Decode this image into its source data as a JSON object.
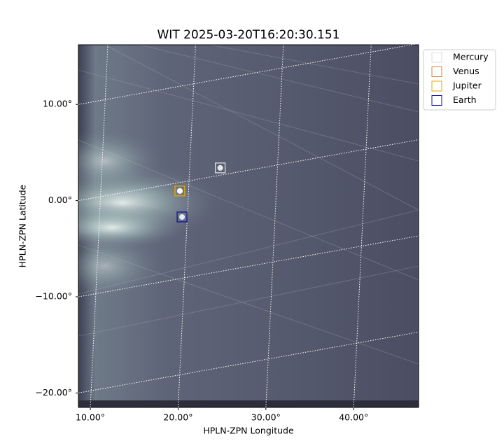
{
  "chart_data": {
    "type": "scatter",
    "title": "WIT 2025-03-20T16:20:30.151",
    "xlabel": "HPLN-ZPN Longitude",
    "ylabel": "HPLN-ZPN Latitude",
    "xlim": [
      8.64,
      47.4
    ],
    "ylim": [
      -21.5,
      16.2
    ],
    "xticks": [
      {
        "value": 10,
        "label": "10.00°"
      },
      {
        "value": 20,
        "label": "20.00°"
      },
      {
        "value": 30,
        "label": "30.00°"
      },
      {
        "value": 40,
        "label": "40.00°"
      }
    ],
    "yticks": [
      {
        "value": -20,
        "label": "−20.00°"
      },
      {
        "value": -10,
        "label": "−10.00°"
      },
      {
        "value": 0,
        "label": "0.00°"
      },
      {
        "value": 10,
        "label": "10.00°"
      }
    ],
    "grid": true,
    "series": [
      {
        "name": "Mercury",
        "color": "#dddddd",
        "x": [
          24.8
        ],
        "values": [
          3.4
        ]
      },
      {
        "name": "Venus",
        "color": "#e07b39",
        "x": [
          20.2
        ],
        "values": [
          1.0
        ]
      },
      {
        "name": "Jupiter",
        "color": "#e0a800",
        "x": [
          20.2
        ],
        "values": [
          1.0
        ]
      },
      {
        "name": "Earth",
        "color": "#1010a0",
        "x": [
          20.45
        ],
        "values": [
          -1.7
        ]
      }
    ]
  }
}
